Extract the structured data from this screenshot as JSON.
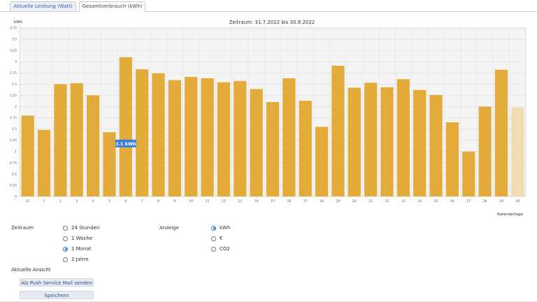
{
  "tabs": [
    {
      "label": "Aktuelle Leistung (Watt)"
    },
    {
      "label": "Gesamtverbrauch (kWh)"
    }
  ],
  "chart_data": {
    "type": "bar",
    "title": "Zeitraum: 31.7.2022 bis 30.8.2022",
    "ylabel": "kWh",
    "xlabel": "Kalendertage",
    "ylim": [
      0,
      3.75
    ],
    "yticks": [
      "0",
      "0.25",
      "0.5",
      "0.75",
      "1",
      "1.25",
      "1.5",
      "1.75",
      "2",
      "2.25",
      "2.5",
      "2.75",
      "3",
      "3.25",
      "3.5",
      "3.75"
    ],
    "categories": [
      "31",
      "1",
      "2",
      "3",
      "4",
      "5",
      "6",
      "7",
      "8",
      "9",
      "10",
      "11",
      "12",
      "13",
      "14",
      "15",
      "16",
      "17",
      "18",
      "19",
      "20",
      "21",
      "22",
      "23",
      "24",
      "25",
      "26",
      "27",
      "28",
      "29",
      "30"
    ],
    "values": [
      1.8,
      1.48,
      2.5,
      2.52,
      2.25,
      1.43,
      3.1,
      2.83,
      2.74,
      2.59,
      2.66,
      2.63,
      2.54,
      2.57,
      2.39,
      2.1,
      2.63,
      2.13,
      1.55,
      2.91,
      2.42,
      2.53,
      2.43,
      2.61,
      2.37,
      2.26,
      1.65,
      1.0,
      2.0,
      2.82,
      1.98
    ],
    "highlight_last": true,
    "tooltip": "3.1 kWh",
    "bar_color": "#e3ab3a",
    "bar_color_partial": "#f1dbb3",
    "grid": true
  },
  "controls": {
    "zeitraum_label": "Zeitraum",
    "zeitraum_options": [
      {
        "label": "24 Stunden",
        "selected": false
      },
      {
        "label": "1 Woche",
        "selected": false
      },
      {
        "label": "1 Monat",
        "selected": true
      },
      {
        "label": "2 Jahre",
        "selected": false
      }
    ],
    "anzeige_label": "Anzeige",
    "anzeige_options": [
      {
        "label": "kWh",
        "selected": true
      },
      {
        "label": "€",
        "selected": false
      },
      {
        "label": "CO2",
        "selected": false
      }
    ],
    "aktuelle_ansicht_label": "Aktuelle Ansicht",
    "push_button": "Als Push Service Mail senden",
    "save_button": "Speichern"
  }
}
